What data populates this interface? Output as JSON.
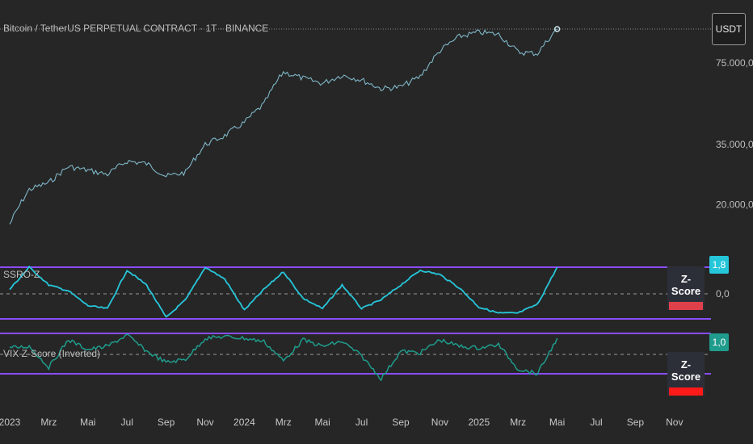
{
  "chart_title": "Bitcoin / TetherUS PERPETUAL CONTRACT · 1T · BINANCE",
  "currency_label": "USDT",
  "price_axis_labels": [
    "75.000,0",
    "35.000,0",
    "20.000,0"
  ],
  "panes": {
    "ssro": {
      "label": "SSRO-Z",
      "value_tag": "1,8",
      "zero_label": "0,0",
      "table_label": "Z-Score",
      "line_color": "#26c6da",
      "band_color": "#8a4dff",
      "status_color": "#e0404a"
    },
    "vix": {
      "label": "VIX Z-Score (Inverted)",
      "value_tag": "1,0",
      "table_label": "Z-Score",
      "line_color": "#1f9c8c",
      "band_color": "#8a4dff",
      "status_color": "#ff1a1a"
    }
  },
  "time_axis_labels": [
    "2023",
    "Mrz",
    "Mai",
    "Jul",
    "Sep",
    "Nov",
    "2024",
    "Mrz",
    "Mai",
    "Jul",
    "Sep",
    "Nov",
    "2025",
    "Mrz",
    "Mai",
    "Jul",
    "Sep",
    "Nov"
  ],
  "chart_data": [
    {
      "type": "line",
      "title": "Bitcoin / TetherUS PERPETUAL CONTRACT · 1T · BINANCE",
      "ylabel": "USDT",
      "yscale": "log",
      "y_ticks": [
        20000,
        35000,
        75000
      ],
      "x": [
        "2023-01",
        "2023-02",
        "2023-03",
        "2023-04",
        "2023-05",
        "2023-06",
        "2023-07",
        "2023-08",
        "2023-09",
        "2023-10",
        "2023-11",
        "2023-12",
        "2024-01",
        "2024-02",
        "2024-03",
        "2024-04",
        "2024-05",
        "2024-06",
        "2024-07",
        "2024-08",
        "2024-09",
        "2024-10",
        "2024-11",
        "2024-12",
        "2025-01",
        "2025-02",
        "2025-03",
        "2025-04",
        "2025-05"
      ],
      "values": [
        16600,
        23000,
        24500,
        28500,
        27500,
        26500,
        30000,
        29300,
        26000,
        27000,
        35000,
        38000,
        43000,
        51000,
        69000,
        65000,
        62000,
        67000,
        64000,
        59000,
        60000,
        66000,
        84000,
        96000,
        100000,
        98000,
        83000,
        82000,
        103000
      ]
    },
    {
      "type": "line",
      "title": "SSRO-Z",
      "series": [
        {
          "name": "SSRO-Z",
          "values": [
            0.3,
            1.8,
            0.6,
            0.2,
            -0.8,
            -1.0,
            1.6,
            0.6,
            -1.6,
            -0.4,
            1.8,
            1.0,
            -1.1,
            0.3,
            1.5,
            -0.3,
            -1.0,
            0.6,
            -1.0,
            -0.4,
            0.6,
            1.6,
            1.3,
            0.4,
            -0.9,
            -1.3,
            -1.3,
            -0.7,
            1.8
          ]
        }
      ],
      "x": [
        "2023-01",
        "2023-02",
        "2023-03",
        "2023-04",
        "2023-05",
        "2023-06",
        "2023-07",
        "2023-08",
        "2023-09",
        "2023-10",
        "2023-11",
        "2023-12",
        "2024-01",
        "2024-02",
        "2024-03",
        "2024-04",
        "2024-05",
        "2024-06",
        "2024-07",
        "2024-08",
        "2024-09",
        "2024-10",
        "2024-11",
        "2024-12",
        "2025-01",
        "2025-02",
        "2025-03",
        "2025-04",
        "2025-05"
      ],
      "ylim": [
        -2,
        2
      ]
    },
    {
      "type": "line",
      "title": "VIX Z-Score (Inverted)",
      "series": [
        {
          "name": "VIX Z-Score (Inverted)",
          "values": [
            0.4,
            0.5,
            -0.8,
            0.9,
            0.3,
            0.5,
            1.2,
            0.2,
            -0.5,
            -0.3,
            1.0,
            1.1,
            1.0,
            0.8,
            -0.4,
            0.9,
            0.5,
            0.8,
            -0.1,
            -1.5,
            0.2,
            0.1,
            0.9,
            0.5,
            0.4,
            0.6,
            -0.9,
            -1.2,
            1.0
          ]
        }
      ],
      "x": [
        "2023-01",
        "2023-02",
        "2023-03",
        "2023-04",
        "2023-05",
        "2023-06",
        "2023-07",
        "2023-08",
        "2023-09",
        "2023-10",
        "2023-11",
        "2023-12",
        "2024-01",
        "2024-02",
        "2024-03",
        "2024-04",
        "2024-05",
        "2024-06",
        "2024-07",
        "2024-08",
        "2024-09",
        "2024-10",
        "2024-11",
        "2024-12",
        "2025-01",
        "2025-02",
        "2025-03",
        "2025-04",
        "2025-05"
      ],
      "ylim": [
        -2,
        2
      ]
    }
  ]
}
